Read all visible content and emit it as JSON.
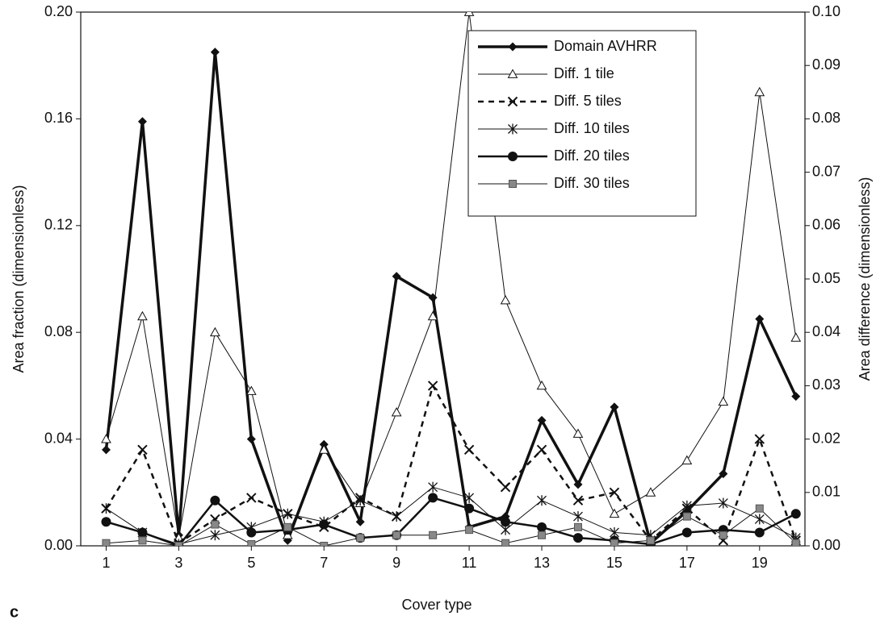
{
  "chart_data": {
    "type": "line",
    "panel_label": "c",
    "x_label": "Cover type",
    "y_label": "Area fraction (dimensionless)",
    "y2_label": "Area difference (dimensionless)",
    "x": [
      1,
      2,
      3,
      4,
      5,
      6,
      7,
      8,
      9,
      10,
      11,
      12,
      13,
      14,
      15,
      16,
      17,
      18,
      19,
      20
    ],
    "xlim": [
      0.3,
      20.25
    ],
    "xticks": [
      1,
      3,
      5,
      7,
      9,
      11,
      13,
      15,
      17,
      19
    ],
    "ylim": [
      0,
      0.2
    ],
    "yticks": [
      {
        "value": 0,
        "label": "0.00"
      },
      0.04,
      0.08,
      0.12,
      0.16,
      {
        "value": 0.2,
        "label": "0.20"
      }
    ],
    "y2lim": [
      0,
      0.1
    ],
    "y2ticks": [
      {
        "value": 0,
        "label": "0.00"
      },
      0.01,
      0.02,
      0.03,
      0.04,
      0.05,
      0.06,
      0.07,
      0.08,
      0.09,
      {
        "value": 0.1,
        "label": "0.10"
      }
    ],
    "grid": false,
    "legend": "upper right",
    "series": [
      {
        "name": "Domain AVHRR",
        "color": "#111111",
        "marker": "diamond",
        "line_width": 3.5,
        "dash": "solid",
        "values": [
          0.036,
          0.159,
          0.004,
          0.185,
          0.04,
          0.002,
          0.038,
          0.009,
          0.101,
          0.093,
          0.007,
          0.011,
          0.047,
          0.023,
          0.052,
          0.001,
          0.013,
          0.027,
          0.085,
          0.056
        ]
      },
      {
        "name": "Diff. 1 tile",
        "color": "#111111",
        "marker": "triangle",
        "line_width": 1,
        "dash": "solid",
        "axis": "y2",
        "values": [
          0.02,
          0.043,
          0.0015,
          0.04,
          0.029,
          0.002,
          0.018,
          0.008,
          0.025,
          0.043,
          0.1,
          0.046,
          0.03,
          0.021,
          0.006,
          0.01,
          0.016,
          0.027,
          0.085,
          0.039
        ]
      },
      {
        "name": "Diff. 5 tiles",
        "color": "#111111",
        "marker": "x",
        "line_width": 2.5,
        "dash": "dashed",
        "axis": "y2",
        "values": [
          0.007,
          0.018,
          0.0005,
          0.005,
          0.009,
          0.006,
          0.0035,
          0.009,
          0.0055,
          0.03,
          0.018,
          0.011,
          0.018,
          0.0085,
          0.01,
          0.001,
          0.007,
          0.001,
          0.02,
          0.001
        ]
      },
      {
        "name": "Diff. 10 tiles",
        "color": "#111111",
        "marker": "asterisk",
        "line_width": 1,
        "dash": "solid",
        "axis": "y2",
        "values": [
          0.007,
          0.0025,
          0.0003,
          0.002,
          0.0035,
          0.006,
          0.0045,
          0.0085,
          0.0055,
          0.011,
          0.009,
          0.003,
          0.0085,
          0.0055,
          0.0025,
          0.002,
          0.0075,
          0.008,
          0.005,
          0.0015
        ]
      },
      {
        "name": "Diff. 20 tiles",
        "color": "#111111",
        "marker": "circle",
        "line_width": 2.5,
        "dash": "solid",
        "axis": "y2",
        "values": [
          0.0045,
          0.0025,
          0,
          0.0085,
          0.0025,
          0.003,
          0.004,
          0.0015,
          0.002,
          0.009,
          0.007,
          0.0045,
          0.0035,
          0.0015,
          0.001,
          0.0003,
          0.0025,
          0.003,
          0.0025,
          0.006
        ]
      },
      {
        "name": "Diff. 30 tiles",
        "color": "#111111",
        "marker": "square",
        "line_width": 1,
        "dash": "solid",
        "axis": "y2",
        "values": [
          0.0005,
          0.001,
          0,
          0.004,
          0.0003,
          0.0035,
          0,
          0.0015,
          0.002,
          0.002,
          0.003,
          0.0005,
          0.002,
          0.0035,
          0.0005,
          0.001,
          0.0055,
          0.002,
          0.007,
          0.0005
        ]
      }
    ]
  }
}
